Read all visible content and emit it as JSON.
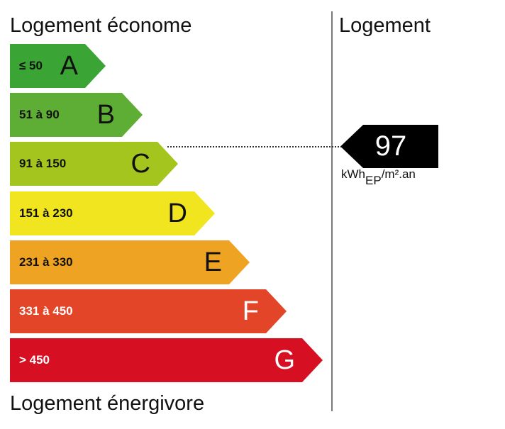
{
  "labels": {
    "top": "Logement économe",
    "bottom": "Logement énergivore",
    "column": "Logement"
  },
  "bands": [
    {
      "letter": "A",
      "range": "≤ 50",
      "color": "#3aa535"
    },
    {
      "letter": "B",
      "range": "51 à 90",
      "color": "#5eae35"
    },
    {
      "letter": "C",
      "range": "91 à 150",
      "color": "#a3c51d"
    },
    {
      "letter": "D",
      "range": "151 à 230",
      "color": "#f0e51e"
    },
    {
      "letter": "E",
      "range": "231 à 330",
      "color": "#eea323"
    },
    {
      "letter": "F",
      "range": "331 à 450",
      "color": "#e34528"
    },
    {
      "letter": "G",
      "range": "> 450",
      "color": "#d70f22"
    }
  ],
  "rating": {
    "value": "97",
    "class": "C",
    "unit_main": "kWh",
    "unit_sub": "EP",
    "unit_rest": "/m².an"
  }
}
